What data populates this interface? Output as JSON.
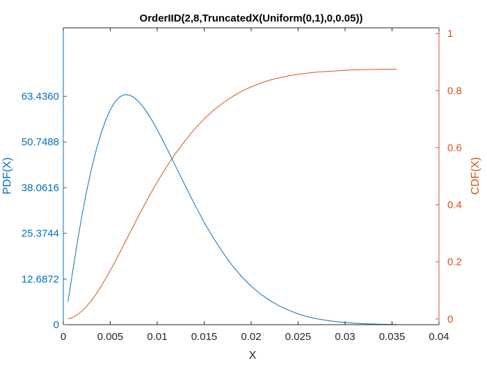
{
  "chart_data": {
    "type": "line",
    "title": "OrderIID(2,8,TruncatedX(Uniform(0,1),0,0.05))",
    "xlabel": "X",
    "ylabel_left": "PDF(X)",
    "ylabel_right": "CDF(X)",
    "xlim": [
      0,
      0.04
    ],
    "ylim_left": [
      0,
      82.4668
    ],
    "ylim_right": [
      -0.02,
      1.02
    ],
    "x_ticks": [
      0,
      0.005,
      0.01,
      0.015,
      0.02,
      0.025,
      0.03,
      0.035,
      0.04
    ],
    "x_tick_labels": [
      "0",
      "0.005",
      "0.01",
      "0.015",
      "0.02",
      "0.025",
      "0.03",
      "0.035",
      "0.04"
    ],
    "left_ticks": [
      0,
      12.6872,
      25.3744,
      38.0616,
      50.7488,
      63.436
    ],
    "left_tick_labels": [
      "0",
      "12.6872",
      "25.3744",
      "38.0616",
      "50.7488",
      "63.4360"
    ],
    "right_ticks": [
      0,
      0.2,
      0.4,
      0.6,
      0.8,
      1
    ],
    "right_tick_labels": [
      "0",
      "0.2",
      "0.4",
      "0.6",
      "0.8",
      "1"
    ],
    "grid": false,
    "colors": {
      "left": "#0072BD",
      "right": "#D95319",
      "axes": "#262626"
    },
    "series": [
      {
        "axis": "left",
        "x": [
          0.0005,
          0.001,
          0.0015,
          0.002,
          0.0025,
          0.003,
          0.0035,
          0.004,
          0.0045,
          0.005,
          0.0055,
          0.006,
          0.0065,
          0.007,
          0.0075,
          0.008,
          0.0085,
          0.009,
          0.0095,
          0.01,
          0.011,
          0.012,
          0.013,
          0.014,
          0.015,
          0.016,
          0.017,
          0.018,
          0.019,
          0.02,
          0.021,
          0.022,
          0.023,
          0.024,
          0.025,
          0.026,
          0.027,
          0.028,
          0.029,
          0.03,
          0.031,
          0.032,
          0.033,
          0.034,
          0.035,
          0.0355
        ],
        "y": [
          6.4,
          14.8,
          23.0,
          30.6,
          37.3,
          43.3,
          48.5,
          53.0,
          56.7,
          59.7,
          61.9,
          63.3,
          63.9,
          63.8,
          63.2,
          62.0,
          60.5,
          58.6,
          56.5,
          54.2,
          49.1,
          43.8,
          38.5,
          33.3,
          28.4,
          24.0,
          20.0,
          16.4,
          13.3,
          10.7,
          8.5,
          6.7,
          5.2,
          4.0,
          3.0,
          2.2,
          1.65,
          1.2,
          0.85,
          0.6,
          0.4,
          0.27,
          0.18,
          0.11,
          0.07,
          0.05
        ]
      },
      {
        "axis": "right",
        "x": [
          0.0005,
          0.001,
          0.0015,
          0.002,
          0.0025,
          0.003,
          0.0035,
          0.004,
          0.0045,
          0.005,
          0.0055,
          0.006,
          0.0065,
          0.007,
          0.0075,
          0.008,
          0.0085,
          0.009,
          0.0095,
          0.01,
          0.011,
          0.012,
          0.013,
          0.014,
          0.015,
          0.016,
          0.017,
          0.018,
          0.019,
          0.02,
          0.021,
          0.022,
          0.023,
          0.024,
          0.025,
          0.026,
          0.027,
          0.028,
          0.029,
          0.03,
          0.031,
          0.032,
          0.033,
          0.034,
          0.035,
          0.0355
        ],
        "y": [
          0.0,
          0.005,
          0.015,
          0.028,
          0.045,
          0.065,
          0.088,
          0.113,
          0.141,
          0.17,
          0.2,
          0.232,
          0.264,
          0.296,
          0.328,
          0.36,
          0.391,
          0.422,
          0.451,
          0.48,
          0.533,
          0.582,
          0.626,
          0.666,
          0.701,
          0.731,
          0.757,
          0.779,
          0.798,
          0.813,
          0.826,
          0.837,
          0.845,
          0.852,
          0.857,
          0.861,
          0.865,
          0.867,
          0.869,
          0.871,
          0.873,
          0.874,
          0.874,
          0.875,
          0.875,
          0.875
        ]
      }
    ]
  }
}
